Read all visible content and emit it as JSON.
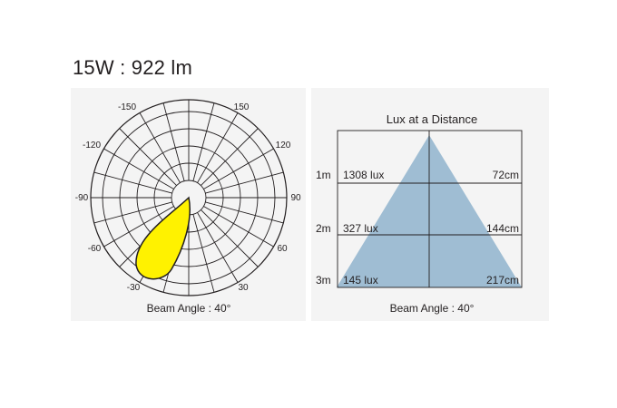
{
  "header": {
    "title": "15W : 922 lm"
  },
  "polar": {
    "angle_labels": [
      "-150",
      "150",
      "-120",
      "120",
      "-90",
      "90",
      "-60",
      "60",
      "-30",
      "30"
    ],
    "beam_angle_text": "Beam Angle : 40°",
    "beam_color": "#fff200"
  },
  "lux": {
    "title": "Lux at a Distance",
    "rows": [
      {
        "distance": "1m",
        "lux": "1308 lux",
        "diameter": "72cm"
      },
      {
        "distance": "2m",
        "lux": "327 lux",
        "diameter": "144cm"
      },
      {
        "distance": "3m",
        "lux": "145 lux",
        "diameter": "217cm"
      }
    ],
    "beam_angle_text": "Beam Angle : 40°",
    "cone_color": "#9fbdd3"
  }
}
